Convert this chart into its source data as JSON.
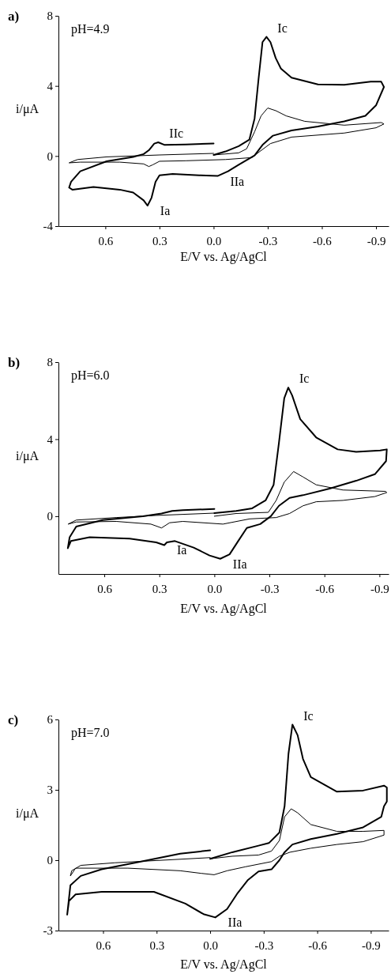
{
  "chart_data": [
    {
      "type": "line",
      "title": "a)",
      "xlabel": "E/V vs. Ag/AgCl",
      "ylabel": "i/μA",
      "xlim": [
        0.86,
        -0.97
      ],
      "ylim": [
        -4,
        8
      ],
      "xticks": [
        {
          "value": 0.6,
          "label": "0.6"
        },
        {
          "value": 0.3,
          "label": "0.3"
        },
        {
          "value": 0,
          "label": "0.0"
        },
        {
          "value": -0.3,
          "label": "-0.3"
        },
        {
          "value": -0.6,
          "label": "-0.6"
        },
        {
          "value": -0.9,
          "label": "-0.9"
        }
      ],
      "yticks": [
        -4,
        0,
        4,
        8
      ],
      "annotations": [
        "pH=4.9",
        {
          "text": "Ic",
          "x": -0.293,
          "y": 6.8
        },
        {
          "text": "IIc",
          "x": 0.307,
          "y": 0.78
        },
        {
          "text": "IIa",
          "x": -0.022,
          "y": -1.14
        },
        {
          "text": "Ia",
          "x": 0.366,
          "y": -2.83
        }
      ],
      "series": [
        {
          "color": "#000000",
          "x": [
            0,
            -0.066,
            -0.139,
            -0.198,
            -0.227,
            -0.249,
            -0.271,
            -0.293,
            -0.315,
            -0.344,
            -0.373,
            -0.432,
            -0.578,
            -0.724,
            -0.871,
            -0.929,
            -0.944,
            -0.9,
            -0.841,
            -0.724,
            -0.578,
            -0.432,
            -0.329,
            -0.271,
            -0.227,
            -0.139,
            -0.08,
            -0.022,
            0.08,
            0.227,
            0.3,
            0.322,
            0.344,
            0.366,
            0.388,
            0.446,
            0.52,
            0.666,
            0.783,
            0.801,
            0.79,
            0.739,
            0.593,
            0.446,
            0.388,
            0.359,
            0.329,
            0.307,
            0.271,
            0.154,
            0
          ],
          "values": [
            0.06,
            0.26,
            0.56,
            0.93,
            2.14,
            4.39,
            6.5,
            6.8,
            6.5,
            5.59,
            4.99,
            4.47,
            4.09,
            4.06,
            4.24,
            4.24,
            3.94,
            2.89,
            2.29,
            1.98,
            1.68,
            1.46,
            1.16,
            0.63,
            0.03,
            -0.5,
            -0.87,
            -1.14,
            -1.1,
            -1.02,
            -1.1,
            -1.47,
            -2.38,
            -2.83,
            -2.53,
            -2.08,
            -1.92,
            -1.77,
            -1.92,
            -1.8,
            -1.47,
            -0.87,
            -0.3,
            -0.05,
            0.11,
            0.33,
            0.71,
            0.78,
            0.63,
            0.66,
            0.71
          ]
        },
        {
          "color": "#000000",
          "x": [
            0,
            -0.139,
            -0.183,
            -0.227,
            -0.263,
            -0.3,
            -0.344,
            -0.402,
            -0.505,
            -0.724,
            -0.929,
            -0.944,
            -0.9,
            -0.724,
            -0.432,
            -0.315,
            -0.256,
            -0.212,
            -0.066,
            0.154,
            0.3,
            0.337,
            0.359,
            0.388,
            0.52,
            0.739,
            0.801,
            0.754,
            0.593,
            0.3,
            0
          ],
          "values": [
            0.06,
            0.18,
            0.41,
            1.38,
            2.29,
            2.74,
            2.59,
            2.29,
            1.98,
            1.76,
            1.91,
            1.83,
            1.61,
            1.31,
            1.08,
            0.71,
            0.26,
            -0.09,
            -0.2,
            -0.27,
            -0.3,
            -0.5,
            -0.6,
            -0.45,
            -0.35,
            -0.35,
            -0.39,
            -0.2,
            -0.05,
            0.06,
            0.15
          ]
        }
      ]
    },
    {
      "type": "line",
      "title": "b)",
      "xlabel": "E/V vs. Ag/AgCl",
      "ylabel": "i/μA",
      "xlim": [
        0.85,
        -0.95
      ],
      "ylim": [
        -3,
        8
      ],
      "xticks": [
        {
          "value": 0.6,
          "label": "0.6"
        },
        {
          "value": 0.3,
          "label": "0.3"
        },
        {
          "value": 0,
          "label": "0.0"
        },
        {
          "value": -0.3,
          "label": "-0.3"
        },
        {
          "value": -0.6,
          "label": "-0.6"
        },
        {
          "value": -0.9,
          "label": "-0.9"
        }
      ],
      "yticks": [
        0,
        4,
        8
      ],
      "annotations": [
        "pH=6.0",
        {
          "text": "Ic",
          "x": -0.403,
          "y": 6.68
        },
        {
          "text": "Ia",
          "x": 0.273,
          "y": -1.5
        },
        {
          "text": "IIa",
          "x": -0.032,
          "y": -2.21
        }
      ],
      "series": [
        {
          "color": "#000000",
          "x": [
            0,
            -0.119,
            -0.206,
            -0.279,
            -0.323,
            -0.352,
            -0.381,
            -0.403,
            -0.424,
            -0.468,
            -0.555,
            -0.672,
            -0.773,
            -0.904,
            -0.94,
            -0.936,
            -0.875,
            -0.773,
            -0.628,
            -0.483,
            -0.41,
            -0.352,
            -0.308,
            -0.25,
            -0.177,
            -0.134,
            -0.083,
            -0.032,
            0.026,
            0.113,
            0.215,
            0.259,
            0.273,
            0.317,
            0.462,
            0.68,
            0.782,
            0.799,
            0.789,
            0.753,
            0.608,
            0.39,
            0.288,
            0.23,
            0.172,
            0
          ],
          "values": [
            0.16,
            0.27,
            0.41,
            0.82,
            1.63,
            3.81,
            6.13,
            6.68,
            6.27,
            5.04,
            4.09,
            3.47,
            3.34,
            3.41,
            3.47,
            2.86,
            2.18,
            1.84,
            1.43,
            1.09,
            0.95,
            0.54,
            0,
            -0.41,
            -0.61,
            -1.23,
            -1.98,
            -2.21,
            -2.04,
            -1.63,
            -1.29,
            -1.36,
            -1.5,
            -1.36,
            -1.16,
            -1.09,
            -1.29,
            -1.66,
            -1.09,
            -0.54,
            -0.2,
            0,
            0.14,
            0.27,
            0.31,
            0.38
          ]
        },
        {
          "color": "#000000",
          "x": [
            0,
            -0.119,
            -0.294,
            -0.337,
            -0.381,
            -0.432,
            -0.483,
            -0.555,
            -0.701,
            -0.933,
            -0.94,
            -0.875,
            -0.701,
            -0.555,
            -0.483,
            -0.41,
            -0.337,
            -0.192,
            -0.047,
            0.172,
            0.244,
            0.288,
            0.346,
            0.535,
            0.753,
            0.797,
            0.753,
            0.535,
            0.317,
            0
          ],
          "values": [
            0,
            0.14,
            0.2,
            0.82,
            1.77,
            2.32,
            2.04,
            1.63,
            1.36,
            1.29,
            1.23,
            1.02,
            0.82,
            0.75,
            0.54,
            0.14,
            -0.07,
            -0.14,
            -0.41,
            -0.27,
            -0.34,
            -0.61,
            -0.41,
            -0.27,
            -0.3,
            -0.41,
            -0.2,
            -0.07,
            0.04,
            0.16
          ]
        }
      ]
    },
    {
      "type": "line",
      "title": "c)",
      "xlabel": "E/V vs. Ag/AgCl",
      "ylabel": "i/μA",
      "xlim": [
        0.85,
        -1.0
      ],
      "ylim": [
        -3,
        6
      ],
      "xticks": [
        {
          "value": 0.6,
          "label": "0.6"
        },
        {
          "value": 0.3,
          "label": "0.3"
        },
        {
          "value": 0,
          "label": "0.0"
        },
        {
          "value": -0.3,
          "label": "-0.3"
        },
        {
          "value": -0.6,
          "label": "-0.6"
        },
        {
          "value": -0.9,
          "label": "-0.9"
        }
      ],
      "yticks": [
        -3,
        0,
        3,
        6
      ],
      "annotations": [
        "pH=7.0",
        {
          "text": "Ic",
          "x": -0.461,
          "y": 5.78
        },
        {
          "text": "IIa",
          "x": -0.029,
          "y": -2.44
        }
      ],
      "series": [
        {
          "color": "#000000",
          "x": [
            0,
            -0.124,
            -0.271,
            -0.329,
            -0.388,
            -0.417,
            -0.439,
            -0.461,
            -0.49,
            -0.52,
            -0.564,
            -0.71,
            -0.857,
            -0.974,
            -0.99,
            -0.99,
            -0.974,
            -0.959,
            -0.857,
            -0.71,
            -0.564,
            -0.461,
            -0.417,
            -0.388,
            -0.344,
            -0.271,
            -0.212,
            -0.154,
            -0.095,
            -0.029,
            0.037,
            0.139,
            0.315,
            0.608,
            0.754,
            0.791,
            0.801,
            0.783,
            0.725,
            0.608,
            0.388,
            0.168,
            0
          ],
          "values": [
            0.06,
            0.34,
            0.62,
            0.73,
            1.18,
            2.3,
            4.55,
            5.78,
            5.33,
            4.32,
            3.54,
            2.92,
            2.97,
            3.18,
            3.1,
            2.5,
            2.3,
            1.85,
            1.4,
            1.12,
            0.9,
            0.67,
            0.34,
            0,
            -0.39,
            -0.48,
            -0.84,
            -1.4,
            -2.08,
            -2.44,
            -2.3,
            -1.85,
            -1.35,
            -1.35,
            -1.46,
            -1.74,
            -2.32,
            -1.07,
            -0.67,
            -0.39,
            -0.06,
            0.28,
            0.42
          ]
        },
        {
          "color": "#000000",
          "x": [
            0,
            -0.124,
            -0.271,
            -0.344,
            -0.388,
            -0.417,
            -0.454,
            -0.49,
            -0.564,
            -0.71,
            -0.857,
            -0.974,
            -0.974,
            -0.857,
            -0.71,
            -0.564,
            -0.447,
            -0.388,
            -0.344,
            -0.198,
            -0.095,
            -0.022,
            0.051,
            0.168,
            0.461,
            0.754,
            0.783,
            0.776,
            0.725,
            0.534,
            0
          ],
          "values": [
            0.06,
            0.17,
            0.22,
            0.39,
            0.84,
            1.85,
            2.19,
            2.02,
            1.52,
            1.23,
            1.23,
            1.27,
            1.07,
            0.79,
            0.67,
            0.51,
            0.34,
            0.17,
            -0.06,
            -0.28,
            -0.45,
            -0.62,
            -0.56,
            -0.45,
            -0.34,
            -0.34,
            -0.67,
            -0.45,
            -0.22,
            -0.11,
            0.11
          ]
        }
      ]
    }
  ]
}
